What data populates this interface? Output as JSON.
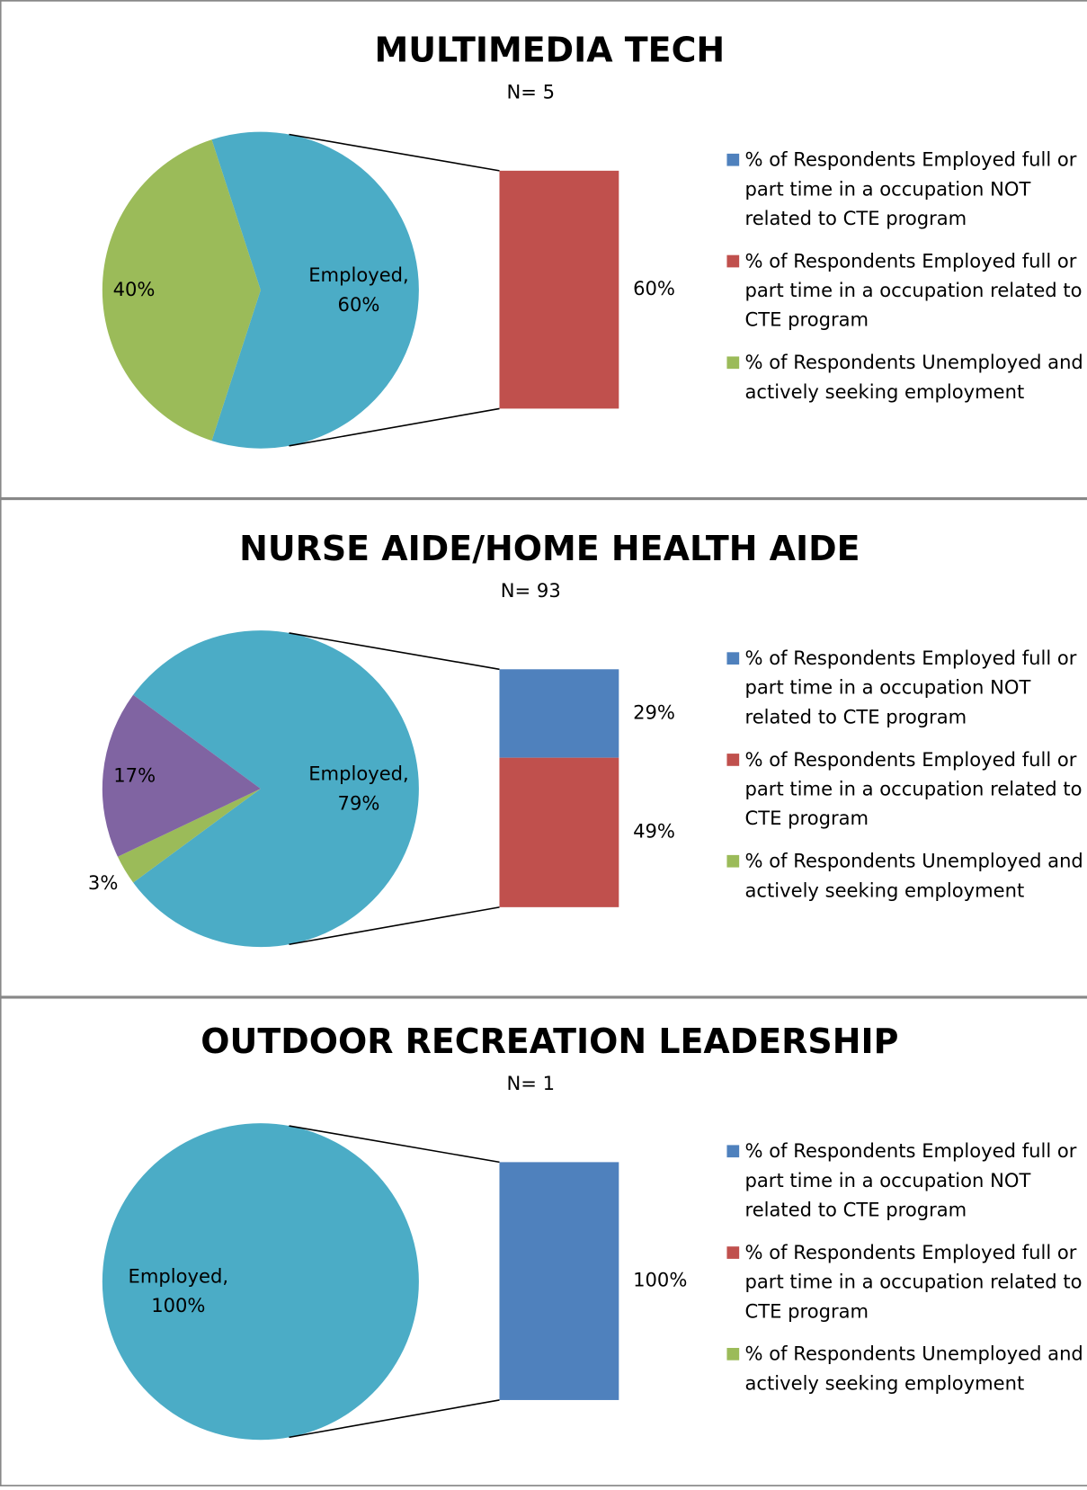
{
  "chart_data": [
    {
      "type": "bar-of-pie",
      "title": "MULTIMEDIA TECH",
      "subtitle": "N= 5",
      "pie": {
        "values": [
          60,
          40
        ],
        "value_labels": [
          "Employed, 60%",
          "40%"
        ],
        "colors": [
          "#4bacc6",
          "#9bbb59"
        ]
      },
      "bar": {
        "values": [
          60
        ],
        "value_labels": [
          "60%"
        ],
        "colors": [
          "#c0504d"
        ]
      },
      "legend": {
        "names": [
          "% of Respondents Employed full or part time in a occupation NOT related to CTE program",
          "% of Respondents Employed full or part time in a occupation related to CTE program",
          "% of Respondents Unemployed and actively seeking employment"
        ],
        "colors": [
          "#4f81bd",
          "#c0504d",
          "#9bbb59"
        ]
      }
    },
    {
      "type": "bar-of-pie",
      "title": "NURSE AIDE/HOME HEALTH AIDE",
      "subtitle": "N= 93",
      "pie": {
        "values": [
          79,
          3,
          17
        ],
        "value_labels": [
          "Employed, 79%",
          "3%",
          "17%"
        ],
        "colors": [
          "#4bacc6",
          "#9bbb59",
          "#8064a2"
        ]
      },
      "bar": {
        "values": [
          29,
          49
        ],
        "value_labels": [
          "29%",
          "49%"
        ],
        "colors": [
          "#4f81bd",
          "#c0504d"
        ]
      },
      "legend": {
        "names": [
          "% of Respondents Employed full or part time in a occupation NOT related to CTE program",
          "% of Respondents Employed full or part time in a occupation related to CTE program",
          "% of Respondents Unemployed and actively seeking employment"
        ],
        "colors": [
          "#4f81bd",
          "#c0504d",
          "#9bbb59"
        ]
      }
    },
    {
      "type": "bar-of-pie",
      "title": "OUTDOOR RECREATION LEADERSHIP",
      "subtitle": "N= 1",
      "pie": {
        "values": [
          100
        ],
        "value_labels": [
          "Employed, 100%"
        ],
        "colors": [
          "#4bacc6"
        ]
      },
      "bar": {
        "values": [
          100
        ],
        "value_labels": [
          "100%"
        ],
        "colors": [
          "#4f81bd"
        ]
      },
      "legend": {
        "names": [
          "% of Respondents Employed full or part time in a occupation NOT related to CTE program",
          "% of Respondents Employed full or part time in a occupation related to CTE program",
          "% of Respondents Unemployed and actively seeking employment"
        ],
        "colors": [
          "#4f81bd",
          "#c0504d",
          "#9bbb59"
        ]
      }
    }
  ]
}
